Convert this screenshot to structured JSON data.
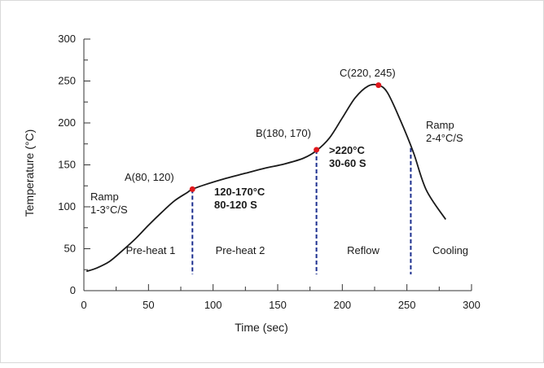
{
  "chart_data": {
    "type": "line",
    "title": "",
    "xlabel": "Time (sec)",
    "ylabel": "Temperature (°C)",
    "xlim": [
      0,
      300
    ],
    "ylim": [
      0,
      300
    ],
    "x_ticks": [
      "0",
      "50",
      "100",
      "150",
      "200",
      "250",
      "300"
    ],
    "y_ticks": [
      "0",
      "50",
      "100",
      "150",
      "200",
      "250",
      "300"
    ],
    "grid": false,
    "legend": "none",
    "series": [
      {
        "color": "#1a1a1a",
        "points": [
          [
            2,
            23
          ],
          [
            10,
            27
          ],
          [
            20,
            35
          ],
          [
            30,
            48
          ],
          [
            40,
            62
          ],
          [
            50,
            78
          ],
          [
            60,
            93
          ],
          [
            70,
            107
          ],
          [
            80,
            117
          ],
          [
            84,
            121
          ],
          [
            95,
            127
          ],
          [
            110,
            134
          ],
          [
            125,
            140
          ],
          [
            140,
            146
          ],
          [
            155,
            151
          ],
          [
            170,
            158
          ],
          [
            180,
            167
          ],
          [
            190,
            182
          ],
          [
            200,
            206
          ],
          [
            210,
            230
          ],
          [
            220,
            244
          ],
          [
            228,
            245
          ],
          [
            235,
            236
          ],
          [
            245,
            203
          ],
          [
            255,
            165
          ],
          [
            265,
            120
          ],
          [
            280,
            85
          ]
        ]
      }
    ],
    "highlight_points": [
      {
        "x": 84,
        "y": 121,
        "label": "A(80, 120)",
        "color": "#e0191d"
      },
      {
        "x": 180,
        "y": 168,
        "label": "B(180, 170)",
        "color": "#e0191d"
      },
      {
        "x": 228,
        "y": 245,
        "label": "C(220, 245)",
        "color": "#e0191d"
      }
    ],
    "phase_dividers": [
      {
        "x": 84,
        "y_top": 121
      },
      {
        "x": 180,
        "y_top": 168
      },
      {
        "x": 253,
        "y_top": 170
      }
    ],
    "divider_color": "#1c2f8f",
    "phases": [
      {
        "label": "Pre-heat 1",
        "x": 52,
        "y": 48
      },
      {
        "label": "Pre-heat 2",
        "x": 132,
        "y": 48
      },
      {
        "label": "Reflow",
        "x": 218,
        "y": 48
      },
      {
        "label": "Cooling",
        "x": 280,
        "y": 48
      }
    ],
    "annotations": [
      {
        "lines": [
          "Ramp",
          "1-3°C/S"
        ],
        "x": 5,
        "y": 110,
        "bold": false
      },
      {
        "lines": [
          "120-170°C",
          "80-120 S"
        ],
        "x": 100,
        "y": 118,
        "bold": true
      },
      {
        "lines": [
          ">220°C",
          "30-60 S"
        ],
        "x": 192,
        "y": 170,
        "bold": true
      },
      {
        "lines": [
          "Ramp",
          "2-4°C/S"
        ],
        "x": 262,
        "y": 200,
        "bold": false
      }
    ]
  }
}
